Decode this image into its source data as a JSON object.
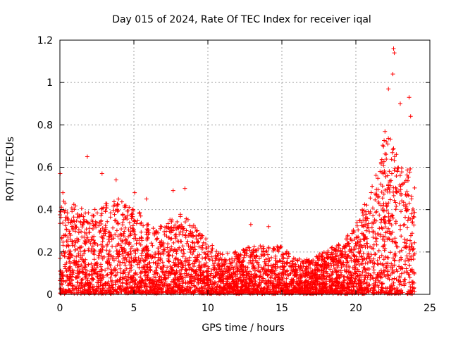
{
  "chart_data": {
    "type": "scatter",
    "title": "Day 015 of 2024, Rate Of TEC Index for receiver iqal",
    "xlabel": "GPS time / hours",
    "ylabel": "ROTI / TECUs",
    "xlim": [
      0,
      25
    ],
    "ylim": [
      0,
      1.2
    ],
    "x_ticks": [
      0,
      5,
      10,
      15,
      20,
      25
    ],
    "x_tick_labels": [
      "0",
      "5",
      "10",
      "15",
      "20",
      "25"
    ],
    "y_ticks": [
      0,
      0.2,
      0.4,
      0.6,
      0.8,
      1.0,
      1.2
    ],
    "y_tick_labels": [
      "0",
      "0.2",
      "0.4",
      "0.6",
      "0.8",
      "1",
      "1.2"
    ],
    "grid": true,
    "marker": "+",
    "color": "#ff0000",
    "series": [
      {
        "name": "ROTI",
        "envelope": {
          "description": "approximate upper envelope of dense scatter (hours, TECU)",
          "x": [
            0,
            1,
            2,
            3,
            4,
            5,
            6,
            7,
            8,
            9,
            10,
            11,
            12,
            13,
            14,
            15,
            16,
            17,
            18,
            19,
            20,
            21,
            21.5,
            22,
            22.5,
            23,
            23.5,
            24
          ],
          "y": [
            0.45,
            0.42,
            0.4,
            0.42,
            0.45,
            0.4,
            0.35,
            0.32,
            0.38,
            0.33,
            0.25,
            0.18,
            0.2,
            0.22,
            0.24,
            0.22,
            0.16,
            0.16,
            0.2,
            0.24,
            0.32,
            0.5,
            0.6,
            0.8,
            0.7,
            0.62,
            0.62,
            0.55
          ]
        },
        "notable_points": {
          "x": [
            0.02,
            0.2,
            1.85,
            2.85,
            3.8,
            5.05,
            5.85,
            7.65,
            8.45,
            12.9,
            14.1,
            22.55,
            22.6,
            22.5,
            22.2,
            23.6,
            23.7,
            23.0
          ],
          "y": [
            0.57,
            0.48,
            0.65,
            0.57,
            0.54,
            0.48,
            0.45,
            0.49,
            0.5,
            0.33,
            0.32,
            1.16,
            1.14,
            1.04,
            0.97,
            0.93,
            0.84,
            0.9
          ]
        }
      }
    ]
  }
}
